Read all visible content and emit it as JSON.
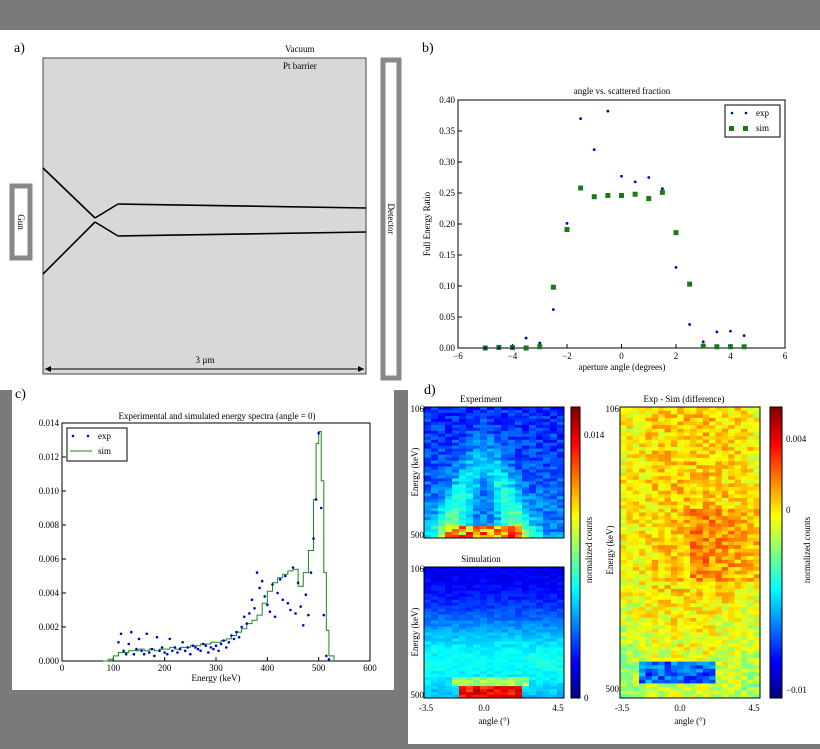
{
  "panel_a": {
    "label": "a)",
    "vacuum_label": "Vacuum",
    "barrier_label": "Pt barrier",
    "gun_label": "Gun",
    "detector_label": "Detector",
    "scale_label": "3 µm"
  },
  "panel_b": {
    "label": "b)",
    "xticks": [
      "−6",
      "−4",
      "−2",
      "0",
      "2",
      "4",
      "6"
    ],
    "yticks": [
      "0.00",
      "0.05",
      "0.10",
      "0.15",
      "0.20",
      "0.25",
      "0.30",
      "0.35",
      "0.40"
    ]
  },
  "panel_c": {
    "label": "c)",
    "xticks": [
      "0",
      "100",
      "200",
      "300",
      "400",
      "500",
      "600"
    ],
    "yticks": [
      "0.000",
      "0.002",
      "0.004",
      "0.006",
      "0.008",
      "0.010",
      "0.012",
      "0.014"
    ]
  },
  "panel_d": {
    "label": "d)",
    "exp_title": "Experiment",
    "sim_title": "Simulation",
    "diff_title": "Exp - Sim (difference)",
    "ylabel": "Energy (keV)",
    "xlabel": "angle (°)",
    "ytick_top": "106",
    "ytick_bottom": "500",
    "xticks": [
      "-3.5",
      "0.0",
      "4.5"
    ],
    "cbar1_ticks": [
      "0.014",
      "0"
    ],
    "cbar2_ticks": [
      "0.004",
      "0",
      "−0.01"
    ],
    "cbar_label": "normalized counts",
    "colors": {
      "jet_low": "#00007f",
      "jet_mid": "#7fff7f",
      "jet_high": "#7f0000"
    }
  },
  "chart_data": [
    {
      "type": "scatter",
      "title": "angle vs. scattered fraction",
      "xlabel": "aperture angle (degrees)",
      "ylabel": "Full Energy Ratio",
      "xlim": [
        -6,
        6
      ],
      "ylim": [
        0,
        0.4
      ],
      "legend_position": "top-right",
      "series": [
        {
          "name": "exp",
          "color": "#0000cc",
          "marker": "dot",
          "x": [
            -5,
            -4.5,
            -4,
            -3.5,
            -3,
            -2.5,
            -2,
            -1.5,
            -1,
            -0.5,
            0,
            0.5,
            1,
            1.5,
            2,
            2.5,
            3,
            3.5,
            4,
            4.5
          ],
          "y": [
            0.0,
            0.0,
            0.0,
            0.016,
            0.008,
            0.062,
            0.201,
            0.37,
            0.32,
            0.382,
            0.277,
            0.268,
            0.275,
            0.257,
            0.13,
            0.038,
            0.01,
            0.026,
            0.027,
            0.02
          ]
        },
        {
          "name": "sim",
          "color": "#1a7a1a",
          "marker": "square",
          "x": [
            -5,
            -4.5,
            -4,
            -3.5,
            -3,
            -2.5,
            -2,
            -1.5,
            -1,
            -0.5,
            0,
            0.5,
            1,
            1.5,
            2,
            2.5,
            3,
            3.5,
            4,
            4.5
          ],
          "y": [
            0.0,
            0.001,
            0.001,
            0.0,
            0.002,
            0.098,
            0.191,
            0.258,
            0.244,
            0.246,
            0.246,
            0.248,
            0.241,
            0.251,
            0.186,
            0.103,
            0.003,
            0.002,
            0.002,
            0.002
          ]
        }
      ]
    },
    {
      "type": "line",
      "title": "Experimental and simulated energy spectra (angle = 0)",
      "xlabel": "Energy (keV)",
      "ylabel": "",
      "xlim": [
        0,
        600
      ],
      "ylim": [
        0,
        0.014
      ],
      "legend_position": "top-left",
      "series": [
        {
          "name": "exp",
          "color": "#0000cc",
          "marker": "dot",
          "x": [
            110,
            115,
            120,
            125,
            130,
            135,
            140,
            145,
            150,
            155,
            160,
            165,
            170,
            175,
            180,
            185,
            190,
            195,
            200,
            205,
            210,
            215,
            220,
            225,
            230,
            235,
            240,
            245,
            250,
            255,
            260,
            265,
            270,
            275,
            280,
            285,
            290,
            295,
            300,
            305,
            310,
            315,
            320,
            325,
            330,
            335,
            340,
            345,
            350,
            355,
            360,
            365,
            370,
            375,
            380,
            385,
            390,
            395,
            400,
            405,
            410,
            415,
            420,
            425,
            430,
            435,
            440,
            445,
            450,
            455,
            460,
            465,
            470,
            475,
            480,
            485,
            490,
            495,
            500,
            505,
            510,
            515,
            520
          ],
          "y": [
            0.0011,
            0.0016,
            0.0006,
            0.0004,
            0.001,
            0.0017,
            0.0004,
            0.0007,
            0.0013,
            0.0006,
            0.0004,
            0.0016,
            0.0005,
            0.0007,
            0.0003,
            0.0014,
            0.0006,
            0.0008,
            0.0005,
            0.0004,
            0.0013,
            0.0006,
            0.0008,
            0.0005,
            0.0007,
            0.0011,
            0.0006,
            0.0008,
            0.0004,
            0.0009,
            0.0008,
            0.0007,
            0.0006,
            0.001,
            0.0009,
            0.0005,
            0.0008,
            0.0007,
            0.0009,
            0.0006,
            0.001,
            0.0012,
            0.0008,
            0.0011,
            0.0015,
            0.0013,
            0.0017,
            0.0014,
            0.002,
            0.0026,
            0.0022,
            0.0028,
            0.0036,
            0.0031,
            0.0052,
            0.0043,
            0.0047,
            0.0038,
            0.0033,
            0.0029,
            0.0045,
            0.0026,
            0.004,
            0.0048,
            0.0036,
            0.005,
            0.0034,
            0.003,
            0.0055,
            0.0028,
            0.0046,
            0.0032,
            0.0021,
            0.0039,
            0.0027,
            0.0052,
            0.0072,
            0.0095,
            0.0134,
            0.009,
            0.0027,
            0.0003,
            0.0001
          ]
        },
        {
          "name": "sim",
          "color": "#1a8a1a",
          "marker": "step",
          "x": [
            80,
            90,
            100,
            110,
            120,
            130,
            140,
            150,
            160,
            170,
            180,
            190,
            200,
            210,
            220,
            230,
            240,
            250,
            260,
            270,
            280,
            290,
            300,
            310,
            320,
            330,
            340,
            350,
            360,
            370,
            380,
            390,
            400,
            410,
            420,
            430,
            440,
            450,
            460,
            470,
            480,
            490,
            495,
            500,
            505,
            510,
            515,
            520,
            530
          ],
          "y": [
            0.0,
            0.0001,
            0.0003,
            0.0005,
            0.0005,
            0.0006,
            0.0006,
            0.0007,
            0.0006,
            0.0007,
            0.0006,
            0.0007,
            0.0007,
            0.0008,
            0.0007,
            0.0008,
            0.0008,
            0.0009,
            0.0009,
            0.001,
            0.001,
            0.0011,
            0.0011,
            0.0012,
            0.0013,
            0.0015,
            0.0017,
            0.0019,
            0.0022,
            0.0024,
            0.0027,
            0.0034,
            0.0041,
            0.0046,
            0.0049,
            0.0051,
            0.0053,
            0.0054,
            0.0044,
            0.0052,
            0.0065,
            0.0095,
            0.0128,
            0.0135,
            0.0106,
            0.0052,
            0.0018,
            0.0003,
            0.0
          ]
        }
      ]
    },
    {
      "type": "heatmap",
      "title": "Experiment",
      "xlabel": "angle (°)",
      "ylabel": "Energy (keV)",
      "xlim": [
        -3.5,
        4.5
      ],
      "ylim": [
        106,
        500
      ],
      "colorbar_range": [
        0,
        0.014
      ]
    },
    {
      "type": "heatmap",
      "title": "Simulation",
      "xlabel": "angle (°)",
      "ylabel": "Energy (keV)",
      "xlim": [
        -3.5,
        4.5
      ],
      "ylim": [
        106,
        500
      ],
      "colorbar_range": [
        0,
        0.014
      ]
    },
    {
      "type": "heatmap",
      "title": "Exp - Sim (difference)",
      "xlabel": "angle (°)",
      "ylabel": "Energy (keV)",
      "xlim": [
        -3.5,
        4.5
      ],
      "ylim": [
        106,
        500
      ],
      "colorbar_range": [
        -0.01,
        0.004
      ]
    }
  ]
}
